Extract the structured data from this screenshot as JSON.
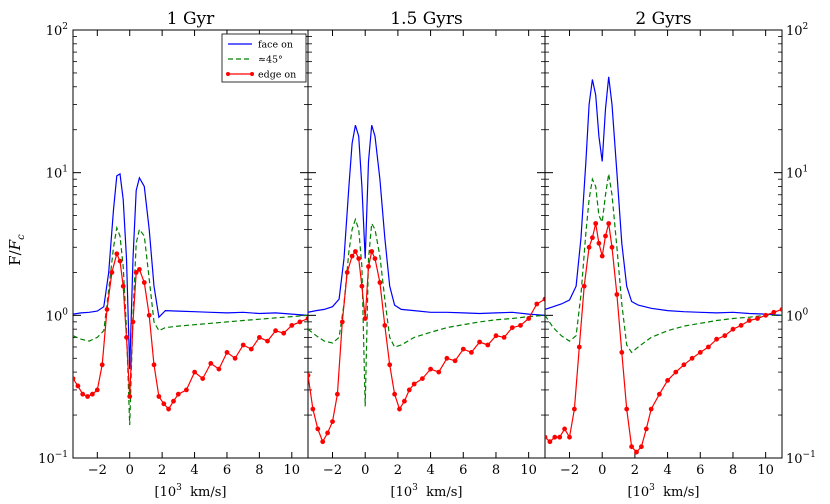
{
  "chart_data": {
    "type": "line",
    "ylabel": "F/F_c",
    "xlabel": "[10^3 km/s]",
    "yscale": "log",
    "ylim": [
      0.1,
      100
    ],
    "xlim": [
      -3.5,
      11
    ],
    "x_ticks": [
      -2,
      0,
      2,
      4,
      6,
      8,
      10
    ],
    "y_ticks": [
      "10^-1",
      "10^0",
      "10^1",
      "10^2"
    ],
    "grid": false,
    "legend": {
      "placement": "top-right of first panel",
      "entries": [
        "face on",
        "≈45°",
        "edge on"
      ]
    },
    "colors": {
      "face_on": "#0000ff",
      "deg45": "#008000",
      "edge_on": "#ff0000"
    },
    "panels": [
      {
        "title": "1 Gyr",
        "series": [
          {
            "name": "face on",
            "x": [
              -3.5,
              -3,
              -2.5,
              -2,
              -1.6,
              -1.3,
              -1,
              -0.8,
              -0.6,
              -0.4,
              -0.2,
              0,
              0.2,
              0.4,
              0.6,
              0.9,
              1.2,
              1.5,
              1.8,
              2.2,
              3,
              4,
              5,
              6,
              7,
              8,
              9,
              10,
              11
            ],
            "y": [
              1.02,
              1.04,
              1.05,
              1.07,
              1.15,
              2.0,
              5.5,
              9.5,
              9.8,
              6.5,
              2.5,
              0.42,
              2.5,
              7.5,
              9.2,
              8.0,
              4.0,
              1.6,
              0.97,
              1.08,
              1.07,
              1.06,
              1.05,
              1.04,
              1.05,
              1.03,
              1.04,
              1.02,
              1.0
            ]
          },
          {
            "name": "≈45°",
            "x": [
              -3.5,
              -3,
              -2.5,
              -2,
              -1.6,
              -1.3,
              -1,
              -0.8,
              -0.6,
              -0.4,
              -0.2,
              0,
              0.2,
              0.4,
              0.6,
              0.9,
              1.2,
              1.5,
              1.8,
              2.2,
              3,
              4,
              5,
              6,
              7,
              8,
              9,
              10,
              11
            ],
            "y": [
              0.72,
              0.68,
              0.66,
              0.7,
              0.78,
              1.5,
              3.0,
              4.1,
              3.6,
              2.2,
              0.8,
              0.17,
              1.0,
              3.2,
              4.0,
              3.6,
              1.8,
              0.9,
              0.78,
              0.82,
              0.84,
              0.86,
              0.88,
              0.9,
              0.92,
              0.94,
              0.96,
              0.98,
              1.0
            ]
          },
          {
            "name": "edge on",
            "x": [
              -3.5,
              -3.2,
              -2.9,
              -2.6,
              -2.3,
              -2,
              -1.7,
              -1.4,
              -1.1,
              -0.8,
              -0.6,
              -0.4,
              -0.2,
              0,
              0.2,
              0.4,
              0.6,
              0.9,
              1.2,
              1.5,
              1.8,
              2.1,
              2.4,
              2.7,
              3,
              3.5,
              4,
              4.5,
              5,
              5.5,
              6,
              6.5,
              7,
              7.5,
              8,
              8.5,
              9,
              9.5,
              10,
              10.5,
              11
            ],
            "y": [
              0.36,
              0.32,
              0.28,
              0.27,
              0.28,
              0.3,
              0.45,
              1.1,
              2.0,
              2.7,
              2.4,
              1.6,
              0.7,
              0.27,
              0.9,
              2.0,
              2.1,
              1.7,
              1.0,
              0.45,
              0.27,
              0.24,
              0.22,
              0.25,
              0.28,
              0.3,
              0.4,
              0.36,
              0.46,
              0.42,
              0.55,
              0.5,
              0.62,
              0.58,
              0.7,
              0.66,
              0.78,
              0.75,
              0.85,
              0.9,
              0.95
            ]
          }
        ]
      },
      {
        "title": "1.5 Gyrs",
        "series": [
          {
            "name": "face on",
            "x": [
              -3.5,
              -3,
              -2.5,
              -2,
              -1.6,
              -1.3,
              -1,
              -0.8,
              -0.6,
              -0.4,
              -0.2,
              0,
              0.2,
              0.4,
              0.6,
              0.9,
              1.2,
              1.5,
              1.8,
              2.2,
              3,
              4,
              5,
              6,
              7,
              8,
              9,
              10,
              11
            ],
            "y": [
              1.05,
              1.08,
              1.1,
              1.15,
              1.3,
              2.5,
              8.0,
              16,
              21.5,
              18,
              8.0,
              2.5,
              12,
              21.5,
              18,
              9.0,
              3.5,
              1.6,
              1.18,
              1.1,
              1.08,
              1.05,
              1.05,
              1.04,
              1.03,
              1.04,
              1.05,
              1.02,
              1.0
            ]
          },
          {
            "name": "≈45°",
            "x": [
              -3.5,
              -3,
              -2.5,
              -2,
              -1.6,
              -1.3,
              -1,
              -0.8,
              -0.6,
              -0.4,
              -0.2,
              0,
              0.2,
              0.4,
              0.6,
              0.9,
              1.2,
              1.5,
              1.8,
              2.2,
              3,
              4,
              5,
              6,
              7,
              8,
              9,
              10,
              11
            ],
            "y": [
              0.8,
              0.72,
              0.66,
              0.64,
              0.7,
              1.2,
              2.8,
              4.0,
              4.7,
              4.0,
              2.2,
              0.23,
              2.5,
              4.4,
              4.0,
              2.6,
              1.3,
              0.7,
              0.6,
              0.62,
              0.7,
              0.76,
              0.82,
              0.86,
              0.9,
              0.93,
              0.95,
              0.98,
              1.0
            ]
          },
          {
            "name": "edge on",
            "x": [
              -3.5,
              -3.2,
              -2.9,
              -2.6,
              -2.3,
              -2,
              -1.7,
              -1.4,
              -1.1,
              -0.8,
              -0.6,
              -0.4,
              -0.2,
              0,
              0.2,
              0.4,
              0.6,
              0.9,
              1.2,
              1.5,
              1.8,
              2.1,
              2.4,
              2.7,
              3,
              3.5,
              4,
              4.5,
              5,
              5.5,
              6,
              6.5,
              7,
              7.5,
              8,
              8.5,
              9,
              9.5,
              10,
              10.5,
              11
            ],
            "y": [
              0.38,
              0.22,
              0.16,
              0.13,
              0.15,
              0.18,
              0.28,
              0.9,
              2.0,
              2.6,
              2.8,
              2.5,
              1.6,
              0.95,
              2.2,
              2.8,
              2.5,
              1.7,
              0.85,
              0.45,
              0.28,
              0.22,
              0.25,
              0.3,
              0.33,
              0.36,
              0.42,
              0.4,
              0.5,
              0.48,
              0.58,
              0.55,
              0.65,
              0.62,
              0.72,
              0.7,
              0.82,
              0.85,
              0.95,
              1.2,
              1.3
            ]
          }
        ]
      },
      {
        "title": "2 Gyrs",
        "series": [
          {
            "name": "face on",
            "x": [
              -3.5,
              -3,
              -2.5,
              -2,
              -1.6,
              -1.3,
              -1,
              -0.8,
              -0.6,
              -0.4,
              -0.2,
              0,
              0.2,
              0.4,
              0.6,
              0.9,
              1.2,
              1.5,
              1.8,
              2.2,
              3,
              4,
              5,
              6,
              7,
              8,
              9,
              10,
              11
            ],
            "y": [
              1.1,
              1.15,
              1.2,
              1.28,
              1.6,
              3.5,
              12,
              30,
              45,
              35,
              18,
              12,
              28,
              47,
              30,
              10,
              3.2,
              1.6,
              1.25,
              1.18,
              1.12,
              1.08,
              1.06,
              1.05,
              1.04,
              1.05,
              1.03,
              1.02,
              1.0
            ]
          },
          {
            "name": "≈45°",
            "x": [
              -3.5,
              -3,
              -2.5,
              -2,
              -1.6,
              -1.3,
              -1,
              -0.8,
              -0.6,
              -0.4,
              -0.2,
              0,
              0.2,
              0.4,
              0.6,
              0.9,
              1.2,
              1.5,
              1.8,
              2.2,
              3,
              4,
              5,
              6,
              7,
              8,
              9,
              10,
              11
            ],
            "y": [
              1.0,
              0.82,
              0.72,
              0.66,
              0.72,
              1.4,
              3.8,
              6.5,
              9.0,
              8.0,
              5.0,
              4.5,
              7.0,
              9.8,
              7.0,
              3.0,
              1.2,
              0.62,
              0.55,
              0.6,
              0.7,
              0.78,
              0.84,
              0.88,
              0.92,
              0.95,
              0.97,
              1.0,
              1.0
            ]
          },
          {
            "name": "edge on",
            "x": [
              -3.5,
              -3.2,
              -2.9,
              -2.6,
              -2.3,
              -2,
              -1.7,
              -1.4,
              -1.1,
              -0.8,
              -0.6,
              -0.4,
              -0.2,
              0,
              0.2,
              0.4,
              0.6,
              0.9,
              1.2,
              1.5,
              1.8,
              2.1,
              2.4,
              2.7,
              3,
              3.5,
              4,
              4.5,
              5,
              5.5,
              6,
              6.5,
              7,
              7.5,
              8,
              8.5,
              9,
              9.5,
              10,
              10.5,
              11
            ],
            "y": [
              0.14,
              0.13,
              0.14,
              0.14,
              0.16,
              0.14,
              0.22,
              0.6,
              1.6,
              3.0,
              3.5,
              4.4,
              3.2,
              2.6,
              3.6,
              4.4,
              3.0,
              1.4,
              0.55,
              0.22,
              0.12,
              0.11,
              0.12,
              0.16,
              0.22,
              0.28,
              0.35,
              0.4,
              0.45,
              0.5,
              0.55,
              0.6,
              0.68,
              0.72,
              0.8,
              0.85,
              0.92,
              0.95,
              1.0,
              1.05,
              1.1
            ]
          }
        ]
      }
    ]
  }
}
